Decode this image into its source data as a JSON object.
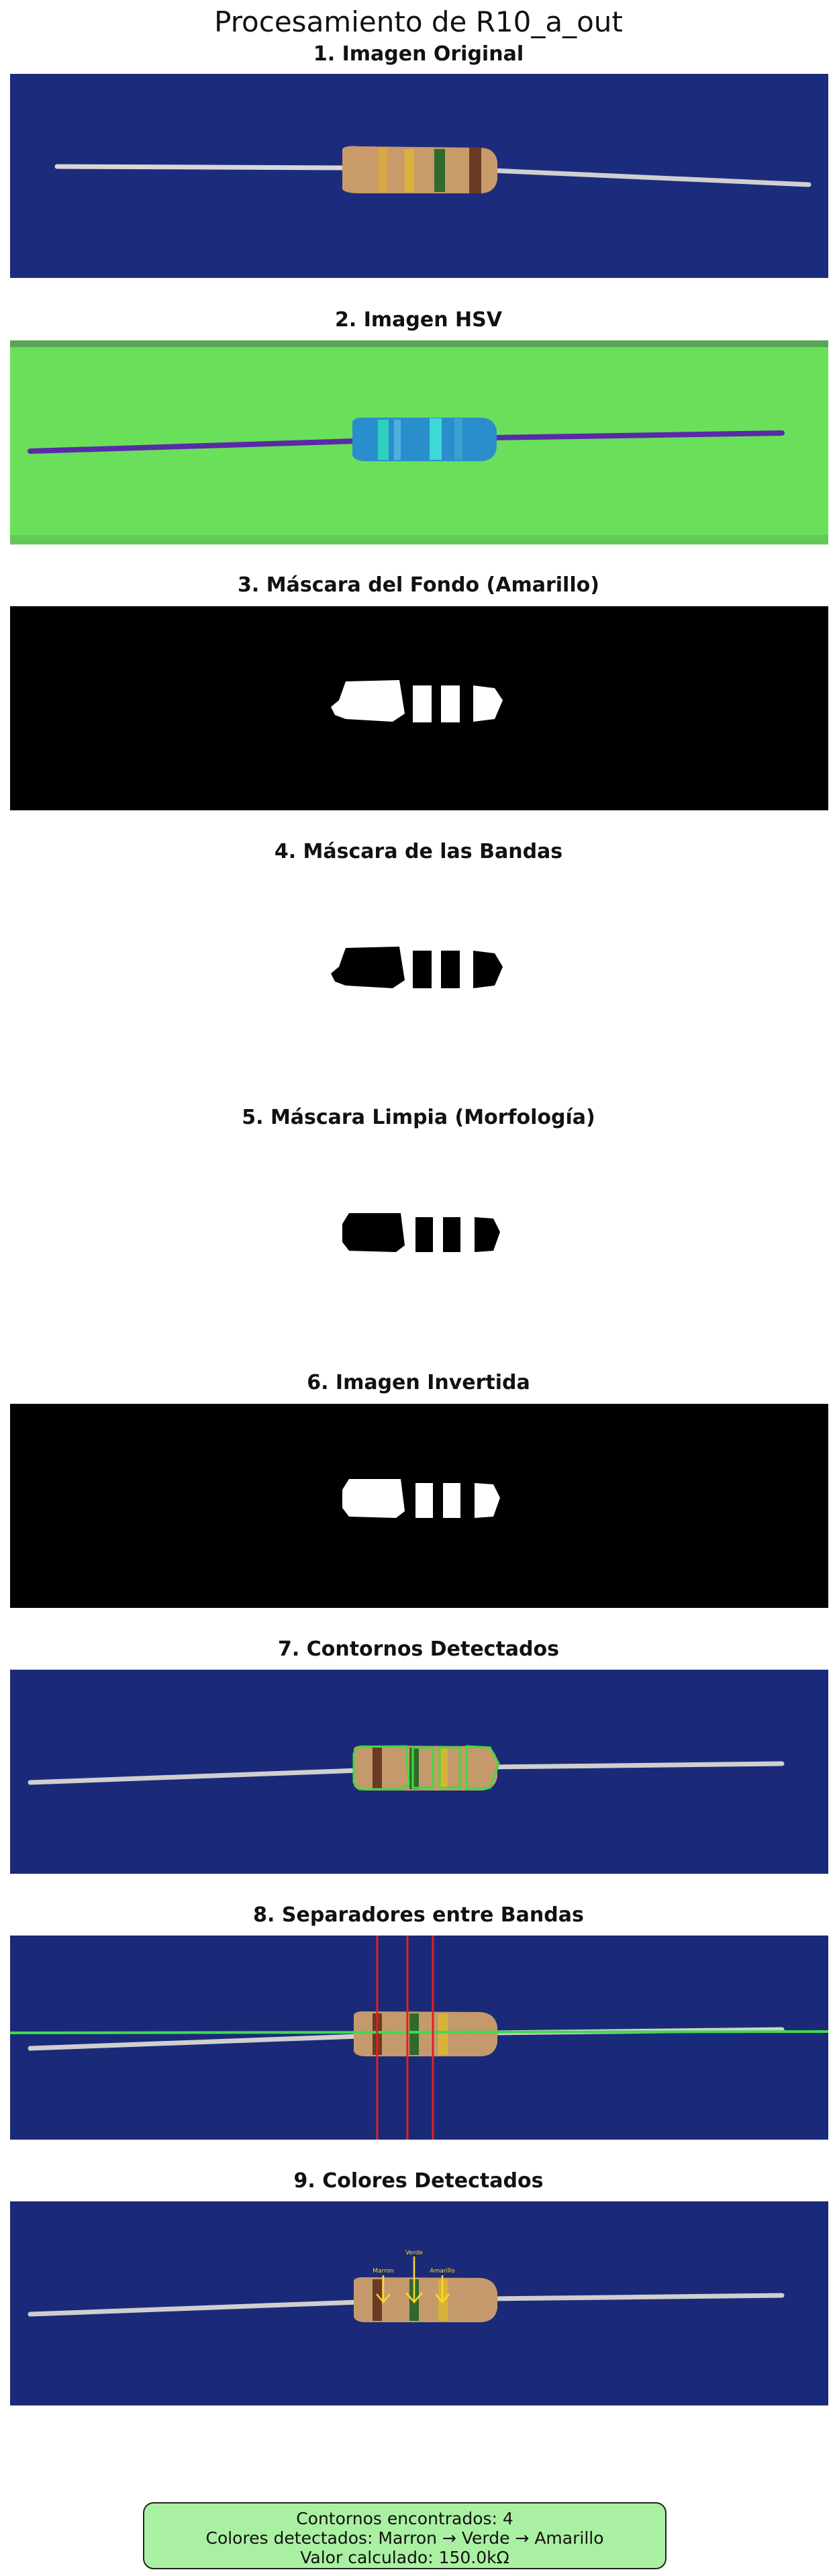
{
  "title": "Procesamiento de R10_a_out",
  "panels": [
    {
      "title": "1. Imagen Original"
    },
    {
      "title": "2. Imagen HSV"
    },
    {
      "title": "3. Máscara del Fondo (Amarillo)"
    },
    {
      "title": "4. Máscara de las Bandas"
    },
    {
      "title": "5. Máscara Limpia (Morfología)"
    },
    {
      "title": "6. Imagen Invertida"
    },
    {
      "title": "7. Contornos Detectados"
    },
    {
      "title": "8. Separadores entre Bandas"
    },
    {
      "title": "9. Colores Detectados"
    }
  ],
  "annotations": {
    "band1": "Marron",
    "band2": "Verde",
    "band3": "Amarillo"
  },
  "summary": {
    "line1": "Contornos encontrados: 4",
    "line2": "Colores detectados: Marron → Verde → Amarillo",
    "line3": "Valor calculado: 150.0kΩ"
  }
}
